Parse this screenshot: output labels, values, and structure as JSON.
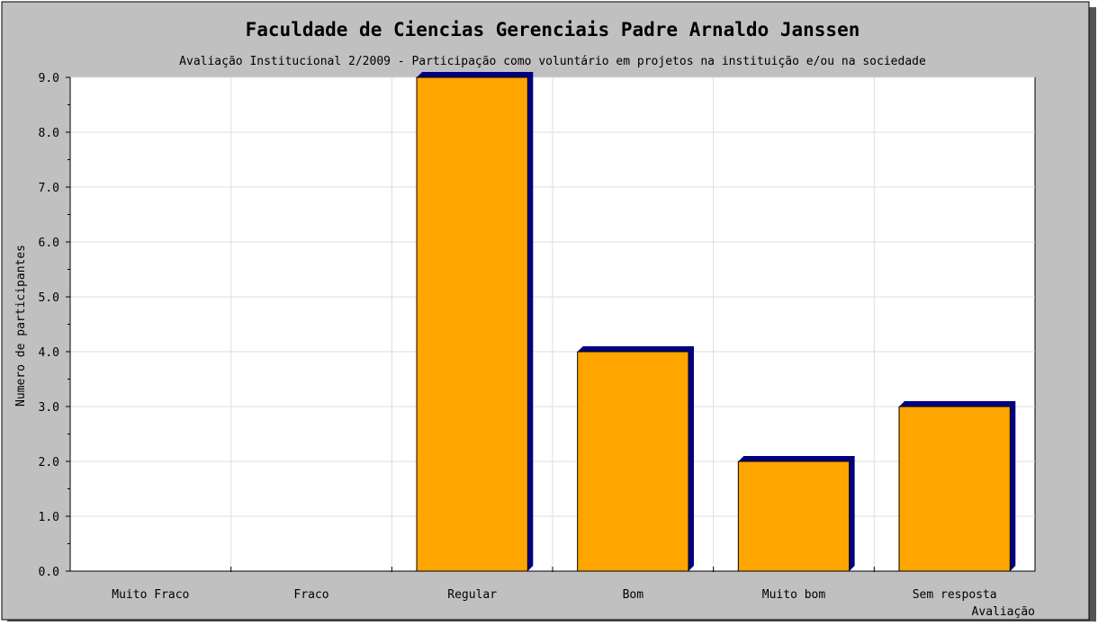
{
  "chart_data": {
    "type": "bar",
    "title": "Faculdade de Ciencias Gerenciais Padre Arnaldo Janssen",
    "subtitle": "Avaliação Institucional 2/2009 - Participação como voluntário em projetos na instituição e/ou na sociedade",
    "xlabel": "Avaliação",
    "ylabel": "Numero de participantes",
    "categories": [
      "Muito Fraco",
      "Fraco",
      "Regular",
      "Bom",
      "Muito bom",
      "Sem resposta"
    ],
    "values": [
      0,
      0,
      9,
      4,
      2,
      3
    ],
    "ylim": [
      0,
      9
    ],
    "yticks": [
      "0.0",
      "1.0",
      "2.0",
      "3.0",
      "4.0",
      "5.0",
      "6.0",
      "7.0",
      "8.0",
      "9.0"
    ],
    "grid": true,
    "colors": {
      "bar_fill": "#FFA500",
      "bar_shadow": "#000080",
      "frame_background": "#C0C0C0",
      "plot_background": "#FFFFFF",
      "grid": "#DDDDDD"
    }
  }
}
